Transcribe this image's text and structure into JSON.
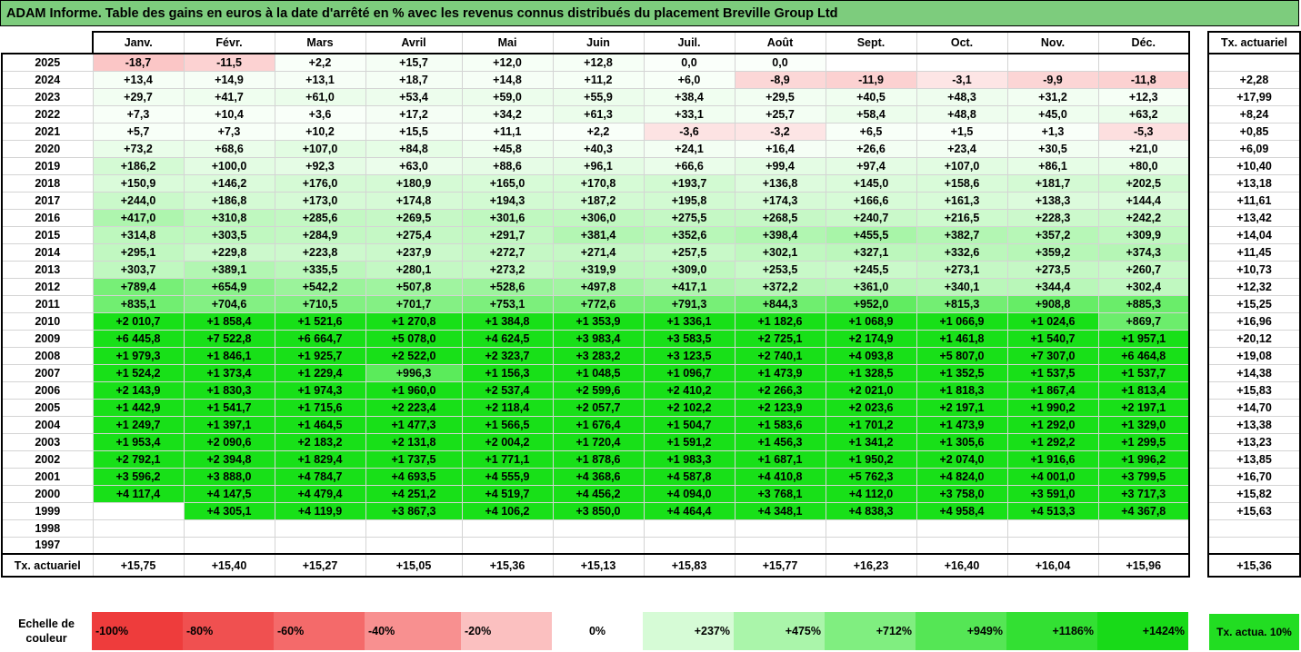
{
  "title": "ADAM Informe. Table des gains en euros à la date d'arrêté en % avec les revenus connus distribués du placement Breville Group Ltd",
  "months": [
    "Janv.",
    "Févr.",
    "Mars",
    "Avril",
    "Mai",
    "Juin",
    "Juil.",
    "Août",
    "Sept.",
    "Oct.",
    "Nov.",
    "Déc."
  ],
  "side_header": "Tx. actuariel",
  "rows": [
    {
      "year": "2025",
      "values": [
        "-18,7",
        "-11,5",
        "+2,2",
        "+15,7",
        "+12,0",
        "+12,8",
        "0,0",
        "0,0",
        "",
        "",
        "",
        ""
      ],
      "tx": ""
    },
    {
      "year": "2024",
      "values": [
        "+13,4",
        "+14,9",
        "+13,1",
        "+18,7",
        "+14,8",
        "+11,2",
        "+6,0",
        "-8,9",
        "-11,9",
        "-3,1",
        "-9,9",
        "-11,8"
      ],
      "tx": "+2,28"
    },
    {
      "year": "2023",
      "values": [
        "+29,7",
        "+41,7",
        "+61,0",
        "+53,4",
        "+59,0",
        "+55,9",
        "+38,4",
        "+29,5",
        "+40,5",
        "+48,3",
        "+31,2",
        "+12,3"
      ],
      "tx": "+17,99"
    },
    {
      "year": "2022",
      "values": [
        "+7,3",
        "+10,4",
        "+3,6",
        "+17,2",
        "+34,2",
        "+61,3",
        "+33,1",
        "+25,7",
        "+58,4",
        "+48,8",
        "+45,0",
        "+63,2"
      ],
      "tx": "+8,24"
    },
    {
      "year": "2021",
      "values": [
        "+5,7",
        "+7,3",
        "+10,2",
        "+15,5",
        "+11,1",
        "+2,2",
        "-3,6",
        "-3,2",
        "+6,5",
        "+1,5",
        "+1,3",
        "-5,3"
      ],
      "tx": "+0,85"
    },
    {
      "year": "2020",
      "values": [
        "+73,2",
        "+68,6",
        "+107,0",
        "+84,8",
        "+45,8",
        "+40,3",
        "+24,1",
        "+16,4",
        "+26,6",
        "+23,4",
        "+30,5",
        "+21,0"
      ],
      "tx": "+6,09"
    },
    {
      "year": "2019",
      "values": [
        "+186,2",
        "+100,0",
        "+92,3",
        "+63,0",
        "+88,6",
        "+96,1",
        "+66,6",
        "+99,4",
        "+97,4",
        "+107,0",
        "+86,1",
        "+80,0"
      ],
      "tx": "+10,40"
    },
    {
      "year": "2018",
      "values": [
        "+150,9",
        "+146,2",
        "+176,0",
        "+180,9",
        "+165,0",
        "+170,8",
        "+193,7",
        "+136,8",
        "+145,0",
        "+158,6",
        "+181,7",
        "+202,5"
      ],
      "tx": "+13,18"
    },
    {
      "year": "2017",
      "values": [
        "+244,0",
        "+186,8",
        "+173,0",
        "+174,8",
        "+194,3",
        "+187,2",
        "+195,8",
        "+174,3",
        "+166,6",
        "+161,3",
        "+138,3",
        "+144,4"
      ],
      "tx": "+11,61"
    },
    {
      "year": "2016",
      "values": [
        "+417,0",
        "+310,8",
        "+285,6",
        "+269,5",
        "+301,6",
        "+306,0",
        "+275,5",
        "+268,5",
        "+240,7",
        "+216,5",
        "+228,3",
        "+242,2"
      ],
      "tx": "+13,42"
    },
    {
      "year": "2015",
      "values": [
        "+314,8",
        "+303,5",
        "+284,9",
        "+275,4",
        "+291,7",
        "+381,4",
        "+352,6",
        "+398,4",
        "+455,5",
        "+382,7",
        "+357,2",
        "+309,9"
      ],
      "tx": "+14,04"
    },
    {
      "year": "2014",
      "values": [
        "+295,1",
        "+229,8",
        "+223,8",
        "+237,9",
        "+272,7",
        "+271,4",
        "+257,5",
        "+302,1",
        "+327,1",
        "+332,6",
        "+359,2",
        "+374,3"
      ],
      "tx": "+11,45"
    },
    {
      "year": "2013",
      "values": [
        "+303,7",
        "+389,1",
        "+335,5",
        "+280,1",
        "+273,2",
        "+319,9",
        "+309,0",
        "+253,5",
        "+245,5",
        "+273,1",
        "+273,5",
        "+260,7"
      ],
      "tx": "+10,73"
    },
    {
      "year": "2012",
      "values": [
        "+789,4",
        "+654,9",
        "+542,2",
        "+507,8",
        "+528,6",
        "+497,8",
        "+417,1",
        "+372,2",
        "+361,0",
        "+340,1",
        "+344,4",
        "+302,4"
      ],
      "tx": "+12,32"
    },
    {
      "year": "2011",
      "values": [
        "+835,1",
        "+704,6",
        "+710,5",
        "+701,7",
        "+753,1",
        "+772,6",
        "+791,3",
        "+844,3",
        "+952,0",
        "+815,3",
        "+908,8",
        "+885,3"
      ],
      "tx": "+15,25"
    },
    {
      "year": "2010",
      "values": [
        "+2 010,7",
        "+1 858,4",
        "+1 521,6",
        "+1 270,8",
        "+1 384,8",
        "+1 353,9",
        "+1 336,1",
        "+1 182,6",
        "+1 068,9",
        "+1 066,9",
        "+1 024,6",
        "+869,7"
      ],
      "tx": "+16,96"
    },
    {
      "year": "2009",
      "values": [
        "+6 445,8",
        "+7 522,8",
        "+6 664,7",
        "+5 078,0",
        "+4 624,5",
        "+3 983,4",
        "+3 583,5",
        "+2 725,1",
        "+2 174,9",
        "+1 461,8",
        "+1 540,7",
        "+1 957,1"
      ],
      "tx": "+20,12"
    },
    {
      "year": "2008",
      "values": [
        "+1 979,3",
        "+1 846,1",
        "+1 925,7",
        "+2 522,0",
        "+2 323,7",
        "+3 283,2",
        "+3 123,5",
        "+2 740,1",
        "+4 093,8",
        "+5 807,0",
        "+7 307,0",
        "+6 464,8"
      ],
      "tx": "+19,08"
    },
    {
      "year": "2007",
      "values": [
        "+1 524,2",
        "+1 373,4",
        "+1 229,4",
        "+996,3",
        "+1 156,3",
        "+1 048,5",
        "+1 096,7",
        "+1 473,9",
        "+1 328,5",
        "+1 352,5",
        "+1 537,5",
        "+1 537,7"
      ],
      "tx": "+14,38"
    },
    {
      "year": "2006",
      "values": [
        "+2 143,9",
        "+1 830,3",
        "+1 974,3",
        "+1 960,0",
        "+2 537,4",
        "+2 599,6",
        "+2 410,2",
        "+2 266,3",
        "+2 021,0",
        "+1 818,3",
        "+1 867,4",
        "+1 813,4"
      ],
      "tx": "+15,83"
    },
    {
      "year": "2005",
      "values": [
        "+1 442,9",
        "+1 541,7",
        "+1 715,6",
        "+2 223,4",
        "+2 118,4",
        "+2 057,7",
        "+2 102,2",
        "+2 123,9",
        "+2 023,6",
        "+2 197,1",
        "+1 990,2",
        "+2 197,1"
      ],
      "tx": "+14,70"
    },
    {
      "year": "2004",
      "values": [
        "+1 249,7",
        "+1 397,1",
        "+1 464,5",
        "+1 477,3",
        "+1 566,5",
        "+1 676,4",
        "+1 504,7",
        "+1 583,6",
        "+1 701,2",
        "+1 473,9",
        "+1 292,0",
        "+1 329,0"
      ],
      "tx": "+13,38"
    },
    {
      "year": "2003",
      "values": [
        "+1 953,4",
        "+2 090,6",
        "+2 183,2",
        "+2 131,8",
        "+2 004,2",
        "+1 720,4",
        "+1 591,2",
        "+1 456,3",
        "+1 341,2",
        "+1 305,6",
        "+1 292,2",
        "+1 299,5"
      ],
      "tx": "+13,23"
    },
    {
      "year": "2002",
      "values": [
        "+2 792,1",
        "+2 394,8",
        "+1 829,4",
        "+1 737,5",
        "+1 771,1",
        "+1 878,6",
        "+1 983,3",
        "+1 687,1",
        "+1 950,2",
        "+2 074,0",
        "+1 916,6",
        "+1 996,2"
      ],
      "tx": "+13,85"
    },
    {
      "year": "2001",
      "values": [
        "+3 596,2",
        "+3 888,0",
        "+4 784,7",
        "+4 693,5",
        "+4 555,9",
        "+4 368,6",
        "+4 587,8",
        "+4 410,8",
        "+5 762,3",
        "+4 824,0",
        "+4 001,0",
        "+3 799,5"
      ],
      "tx": "+16,70"
    },
    {
      "year": "2000",
      "values": [
        "+4 117,4",
        "+4 147,5",
        "+4 479,4",
        "+4 251,2",
        "+4 519,7",
        "+4 456,2",
        "+4 094,0",
        "+3 768,1",
        "+4 112,0",
        "+3 758,0",
        "+3 591,0",
        "+3 717,3"
      ],
      "tx": "+15,82"
    },
    {
      "year": "1999",
      "values": [
        "",
        "+4 305,1",
        "+4 119,9",
        "+3 867,3",
        "+4 106,2",
        "+3 850,0",
        "+4 464,4",
        "+4 348,1",
        "+4 838,3",
        "+4 958,4",
        "+4 513,3",
        "+4 367,8"
      ],
      "tx": "+15,63"
    },
    {
      "year": "1998",
      "values": [
        "",
        "",
        "",
        "",
        "",
        "",
        "",
        "",
        "",
        "",
        "",
        ""
      ],
      "tx": ""
    },
    {
      "year": "1997",
      "values": [
        "",
        "",
        "",
        "",
        "",
        "",
        "",
        "",
        "",
        "",
        "",
        ""
      ],
      "tx": ""
    }
  ],
  "footer": {
    "label": "Tx. actuariel",
    "values": [
      "+15,75",
      "+15,40",
      "+15,27",
      "+15,05",
      "+15,36",
      "+15,13",
      "+15,83",
      "+15,77",
      "+16,23",
      "+16,40",
      "+16,04",
      "+15,96"
    ],
    "tx": "+15,36"
  },
  "scale": {
    "label": "Echelle de couleur",
    "items": [
      {
        "text": "-100%",
        "color": "#ee3c3c",
        "align": "left"
      },
      {
        "text": "-80%",
        "color": "#f05050",
        "align": "left"
      },
      {
        "text": "-60%",
        "color": "#f46a6a",
        "align": "left"
      },
      {
        "text": "-40%",
        "color": "#f89090",
        "align": "left"
      },
      {
        "text": "-20%",
        "color": "#fbc0c0",
        "align": "left"
      },
      {
        "text": "0%",
        "color": "#ffffff",
        "align": "center"
      },
      {
        "text": "+237%",
        "color": "#d6fbd6",
        "align": "right"
      },
      {
        "text": "+475%",
        "color": "#aaf5aa",
        "align": "right"
      },
      {
        "text": "+712%",
        "color": "#80ee80",
        "align": "right"
      },
      {
        "text": "+949%",
        "color": "#55e655",
        "align": "right"
      },
      {
        "text": "+1186%",
        "color": "#33e033",
        "align": "right"
      },
      {
        "text": "+1424%",
        "color": "#18da18",
        "align": "right"
      }
    ],
    "note": "Tx. actua. 10%"
  },
  "colors": {
    "title_bg": "#7dcc7d",
    "scale_note_bg": "#22dd22"
  }
}
